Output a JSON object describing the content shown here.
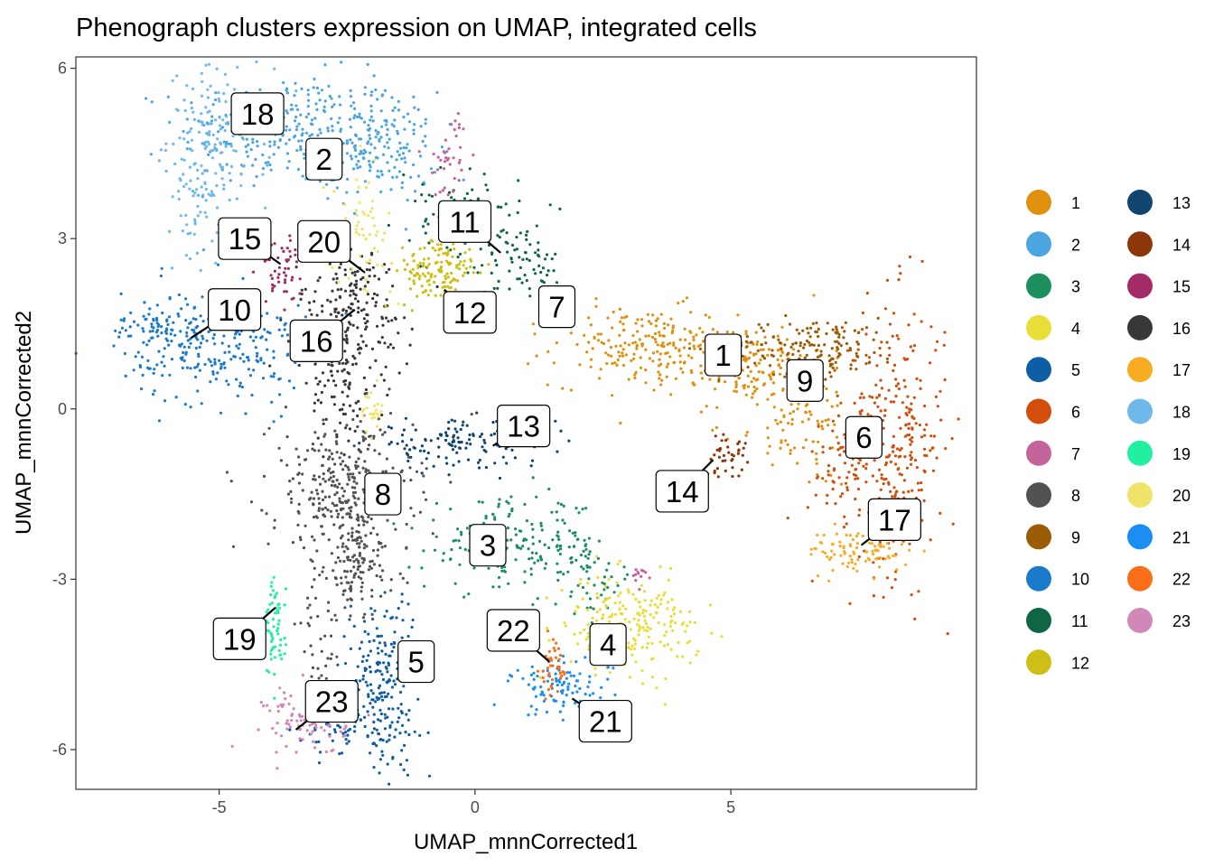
{
  "chart_data": {
    "type": "scatter",
    "title": "Phenograph clusters expression on UMAP, integrated cells",
    "xlabel": "UMAP_mnnCorrected1",
    "ylabel": "UMAP_mnnCorrected2",
    "xlim": [
      -7.8,
      9.8
    ],
    "ylim": [
      -6.7,
      6.2
    ],
    "xticks": [
      -5,
      0,
      5
    ],
    "yticks": [
      -6,
      -3,
      0,
      3,
      6
    ],
    "xtick_labels": [
      "-5",
      "0",
      "5"
    ],
    "ytick_labels": [
      "-6",
      "-3",
      "0",
      "3",
      "6"
    ],
    "grid": false,
    "legend_position": "right",
    "clusters": [
      {
        "name": "1",
        "color": "#E0900F",
        "label": {
          "x": 4.85,
          "y": 0.95
        },
        "point": {
          "x": 4.85,
          "y": 0.95
        }
      },
      {
        "name": "2",
        "color": "#4BA6E0",
        "label": {
          "x": -2.95,
          "y": 4.4
        },
        "point": {
          "x": -2.95,
          "y": 4.4
        }
      },
      {
        "name": "3",
        "color": "#1C8F5F",
        "label": {
          "x": 0.25,
          "y": -2.4
        },
        "point": {
          "x": 0.25,
          "y": -2.4
        }
      },
      {
        "name": "4",
        "color": "#E8DE38",
        "label": {
          "x": 2.6,
          "y": -4.15
        },
        "point": {
          "x": 2.6,
          "y": -4.15
        }
      },
      {
        "name": "5",
        "color": "#0E5EA6",
        "label": {
          "x": -1.15,
          "y": -4.45
        },
        "point": {
          "x": -1.15,
          "y": -4.45
        }
      },
      {
        "name": "6",
        "color": "#D24E0A",
        "label": {
          "x": 7.6,
          "y": -0.5
        },
        "point": {
          "x": 7.6,
          "y": -0.5
        }
      },
      {
        "name": "7",
        "color": "#C5639B",
        "label": {
          "x": 1.6,
          "y": 1.8
        },
        "point": {
          "x": 1.6,
          "y": 1.8
        }
      },
      {
        "name": "8",
        "color": "#525252",
        "label": {
          "x": -1.8,
          "y": -1.5
        },
        "point": {
          "x": -1.8,
          "y": -1.5
        }
      },
      {
        "name": "9",
        "color": "#9A5C06",
        "label": {
          "x": 6.45,
          "y": 0.5
        },
        "point": {
          "x": 6.45,
          "y": 0.5
        }
      },
      {
        "name": "10",
        "color": "#1C7ACB",
        "label": {
          "x": -4.7,
          "y": 1.75
        },
        "point": {
          "x": -5.55,
          "y": 1.25
        }
      },
      {
        "name": "11",
        "color": "#0F6645",
        "label": {
          "x": -0.2,
          "y": 3.3
        },
        "point": {
          "x": 0.5,
          "y": 2.75
        }
      },
      {
        "name": "12",
        "color": "#CDBF16",
        "label": {
          "x": -0.1,
          "y": 1.7
        },
        "point": {
          "x": -0.6,
          "y": 2.1
        }
      },
      {
        "name": "13",
        "color": "#0F456E",
        "label": {
          "x": 0.95,
          "y": -0.3
        },
        "point": {
          "x": 0.35,
          "y": -0.65
        }
      },
      {
        "name": "14",
        "color": "#8C3709",
        "label": {
          "x": 4.05,
          "y": -1.45
        },
        "point": {
          "x": 4.65,
          "y": -0.9
        }
      },
      {
        "name": "15",
        "color": "#A32B68",
        "label": {
          "x": -4.5,
          "y": 3.0
        },
        "point": {
          "x": -3.8,
          "y": 2.55
        }
      },
      {
        "name": "16",
        "color": "#383838",
        "label": {
          "x": -3.1,
          "y": 1.2
        },
        "point": {
          "x": -2.35,
          "y": 1.75
        }
      },
      {
        "name": "17",
        "color": "#F7AC22",
        "label": {
          "x": 8.2,
          "y": -1.95
        },
        "point": {
          "x": 7.55,
          "y": -2.4
        }
      },
      {
        "name": "18",
        "color": "#6FB9EA",
        "label": {
          "x": -4.25,
          "y": 5.2
        },
        "point": {
          "x": -4.25,
          "y": 5.2
        }
      },
      {
        "name": "19",
        "color": "#20F0A0",
        "label": {
          "x": -4.6,
          "y": -4.05
        },
        "point": {
          "x": -3.9,
          "y": -3.5
        }
      },
      {
        "name": "20",
        "color": "#F0E36A",
        "label": {
          "x": -2.95,
          "y": 2.95
        },
        "point": {
          "x": -2.15,
          "y": 2.4
        }
      },
      {
        "name": "21",
        "color": "#1A8EF2",
        "label": {
          "x": 2.55,
          "y": -5.5
        },
        "point": {
          "x": 1.9,
          "y": -5.1
        }
      },
      {
        "name": "22",
        "color": "#FA6E1A",
        "label": {
          "x": 0.75,
          "y": -3.9
        },
        "point": {
          "x": 1.45,
          "y": -4.45
        }
      },
      {
        "name": "23",
        "color": "#D188B8",
        "label": {
          "x": -2.8,
          "y": -5.15
        },
        "point": {
          "x": -3.5,
          "y": -5.65
        }
      }
    ]
  }
}
